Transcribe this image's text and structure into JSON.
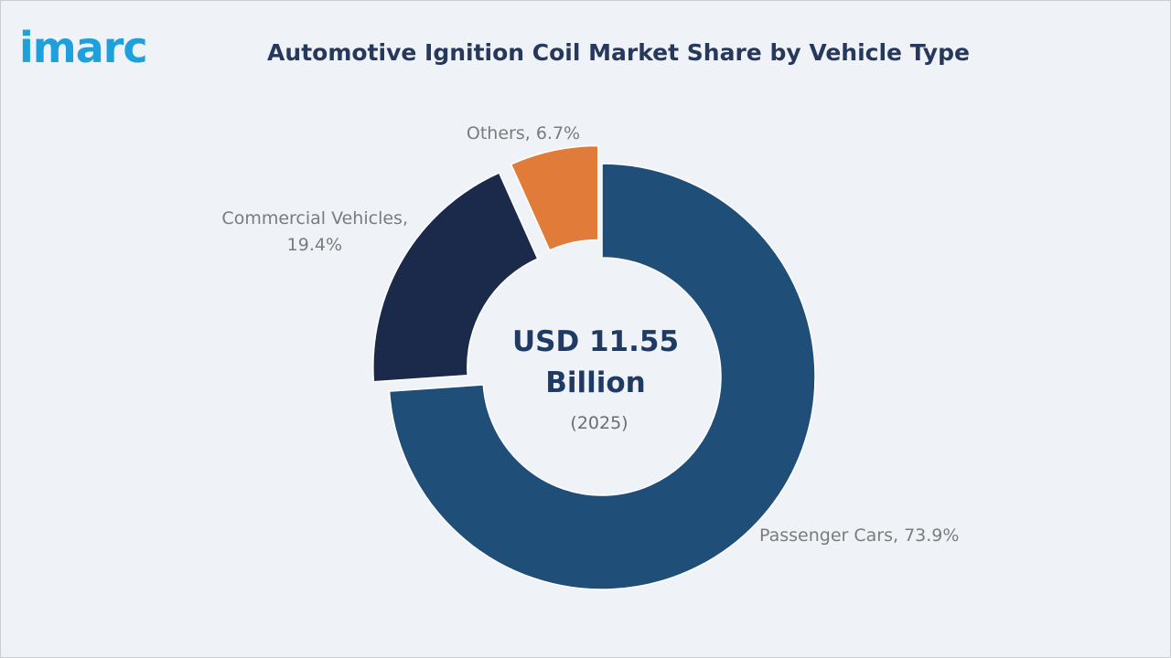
{
  "brand": {
    "logo_text": "imarc"
  },
  "chart_data": {
    "type": "pie",
    "variant": "donut",
    "title": "Automotive Ignition Coil Market Share by Vehicle Type",
    "center_value": "USD 11.55",
    "center_unit": "Billion",
    "center_year": "(2025)",
    "slices": [
      {
        "label": "Passenger Cars",
        "value": 73.9,
        "label_text": "Passenger Cars, 73.9%",
        "color": "#1f4e79",
        "exploded": false
      },
      {
        "label": "Commercial Vehicles",
        "value": 19.4,
        "label_lines": [
          "Commercial Vehicles,",
          "19.4%"
        ],
        "color": "#1b2a4a",
        "exploded": true
      },
      {
        "label": "Others",
        "value": 6.7,
        "label_text": "Others, 6.7%",
        "color": "#e07b39",
        "exploded": true
      }
    ]
  }
}
